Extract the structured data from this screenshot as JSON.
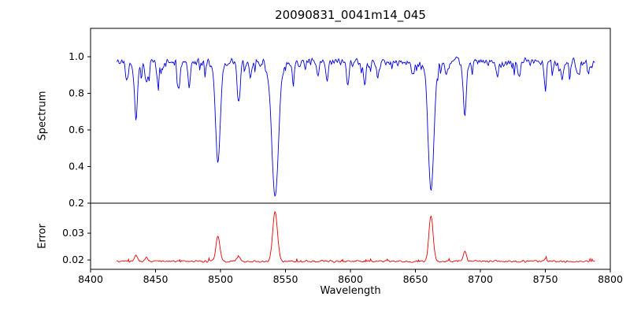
{
  "figure": {
    "title": "20090831_0041m14_045",
    "xlabel": "Wavelength",
    "ylabel_top": "Spectrum",
    "ylabel_bottom": "Error"
  },
  "chart_data": {
    "type": "line",
    "title": "20090831_0041m14_045",
    "xlabel": "Wavelength",
    "xlim": [
      8400,
      8800
    ],
    "x_ticks": [
      8400,
      8450,
      8500,
      8550,
      8600,
      8650,
      8700,
      8750,
      8800
    ],
    "x_tick_labels": [
      "8400",
      "8450",
      "8500",
      "8550",
      "8600",
      "8650",
      "8700",
      "8750",
      "8800"
    ],
    "x_range_data": [
      8420,
      8788
    ],
    "grid": false,
    "legend": false,
    "noise_seed": 42,
    "panels": [
      {
        "name": "spectrum",
        "ylabel": "Spectrum",
        "color": "#0000dd",
        "ylim": [
          0.2,
          1.155
        ],
        "yticks": [
          0.2,
          0.4,
          0.6,
          0.8,
          1.0
        ],
        "ytick_labels": [
          "0.2",
          "0.4",
          "0.6",
          "0.8",
          "1.0"
        ],
        "continuum": 0.97,
        "noise_amplitude": 0.03,
        "absorption_lines_format": "[center_wavelength, depth, sigma_angstrom]",
        "absorption_lines": [
          [
            8428,
            0.1,
            1.0
          ],
          [
            8435,
            0.3,
            1.2
          ],
          [
            8443,
            0.12,
            1.0
          ],
          [
            8452,
            0.08,
            1.0
          ],
          [
            8468,
            0.14,
            1.0
          ],
          [
            8476,
            0.1,
            1.0
          ],
          [
            8498,
            0.55,
            1.8
          ],
          [
            8514,
            0.22,
            1.2
          ],
          [
            8523,
            0.1,
            1.0
          ],
          [
            8542,
            0.73,
            2.6
          ],
          [
            8556,
            0.08,
            1.0
          ],
          [
            8575,
            0.08,
            1.0
          ],
          [
            8582,
            0.1,
            1.0
          ],
          [
            8598,
            0.1,
            1.0
          ],
          [
            8611,
            0.12,
            1.0
          ],
          [
            8621,
            0.08,
            1.0
          ],
          [
            8648,
            0.08,
            1.0
          ],
          [
            8662,
            0.7,
            2.2
          ],
          [
            8674,
            0.08,
            1.0
          ],
          [
            8688,
            0.3,
            1.2
          ],
          [
            8713,
            0.08,
            1.0
          ],
          [
            8730,
            0.08,
            1.0
          ],
          [
            8750,
            0.1,
            1.0
          ],
          [
            8763,
            0.08,
            1.0
          ],
          [
            8775,
            0.08,
            1.0
          ]
        ]
      },
      {
        "name": "error",
        "ylabel": "Error",
        "color": "#ee0000",
        "ylim": [
          0.0165,
          0.0412
        ],
        "yticks": [
          0.02,
          0.03
        ],
        "ytick_labels": [
          "0.02",
          "0.03"
        ],
        "baseline": 0.0195,
        "noise_amplitude": 0.0005,
        "peaks_format": "[center_wavelength, height, sigma_angstrom]",
        "peaks": [
          [
            8435,
            0.0025,
            1.2
          ],
          [
            8443,
            0.0015,
            1.0
          ],
          [
            8498,
            0.0095,
            1.5
          ],
          [
            8514,
            0.0018,
            1.2
          ],
          [
            8542,
            0.0185,
            1.8
          ],
          [
            8662,
            0.017,
            1.6
          ],
          [
            8688,
            0.0035,
            1.2
          ],
          [
            8750,
            0.0008,
            1.0
          ]
        ]
      }
    ]
  }
}
